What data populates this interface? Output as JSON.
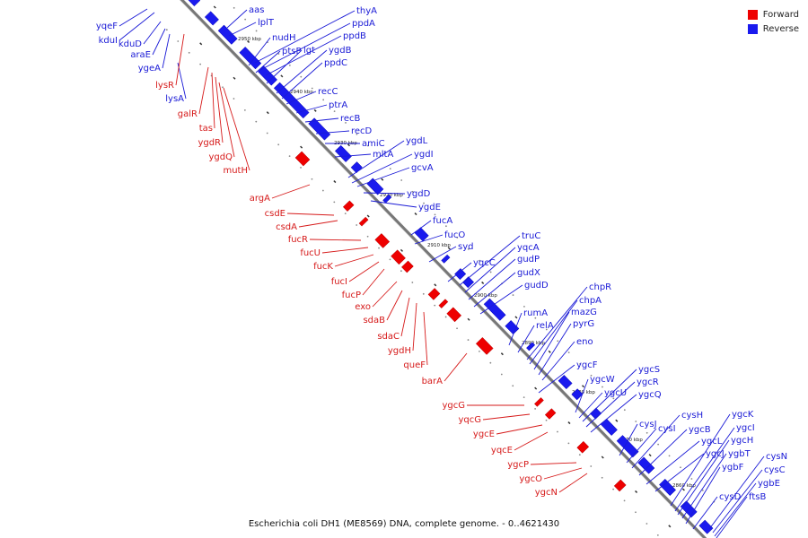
{
  "legend": {
    "forward_label": "Forward",
    "reverse_label": "Reverse",
    "forward_color": "#ee0000",
    "reverse_color": "#1a1aee"
  },
  "caption": "Escherichia coli DH1 (ME8569) DNA, complete genome. - 0..4621430",
  "axis": {
    "ticks": [
      "2950 kbp",
      "2940 kbp",
      "2930 kbp",
      "2920 kbp",
      "2910 kbp",
      "2900 kbp",
      "2890 kbp",
      "2880 kbp",
      "2870 kbp",
      "2860 kbp"
    ]
  },
  "genes": {
    "reverse": [
      "aas",
      "lplT",
      "thyA",
      "ppdA",
      "ppdB",
      "nudH",
      "ptsP",
      "lgt",
      "ygdB",
      "ppdC",
      "recC",
      "ptrA",
      "recB",
      "recD",
      "amiC",
      "mltA",
      "ygdL",
      "ygdI",
      "gcvA",
      "ygdD",
      "ygdE",
      "fucA",
      "fucO",
      "syd",
      "truC",
      "yqcA",
      "yqcC",
      "gudP",
      "gudX",
      "gudD",
      "chpR",
      "chpA",
      "rumA",
      "relA",
      "mazG",
      "pyrG",
      "eno",
      "ygcF",
      "ygcW",
      "ygcS",
      "ygcR",
      "ygcU",
      "ygcQ",
      "cysJ",
      "cysI",
      "cysH",
      "ygcB",
      "ygcK",
      "ygcL",
      "ygcI",
      "ygcH",
      "ygcJ",
      "ygbT",
      "ygbF",
      "cysN",
      "cysC",
      "ygbE",
      "cysD",
      "ftsB",
      "yqeF",
      "kduI",
      "kduD",
      "araE",
      "ygeA",
      "lysA"
    ],
    "forward": [
      "lysR",
      "galR",
      "tas",
      "ygdR",
      "ygdQ",
      "mutH",
      "argA",
      "csdE",
      "csdA",
      "fucR",
      "fucU",
      "fucK",
      "fucI",
      "fucP",
      "exo",
      "sdaB",
      "sdaC",
      "ygdH",
      "queF",
      "barA",
      "ygcG",
      "yqcG",
      "ygcE",
      "yqcE",
      "ygcP",
      "ygcO",
      "ygcN"
    ]
  }
}
